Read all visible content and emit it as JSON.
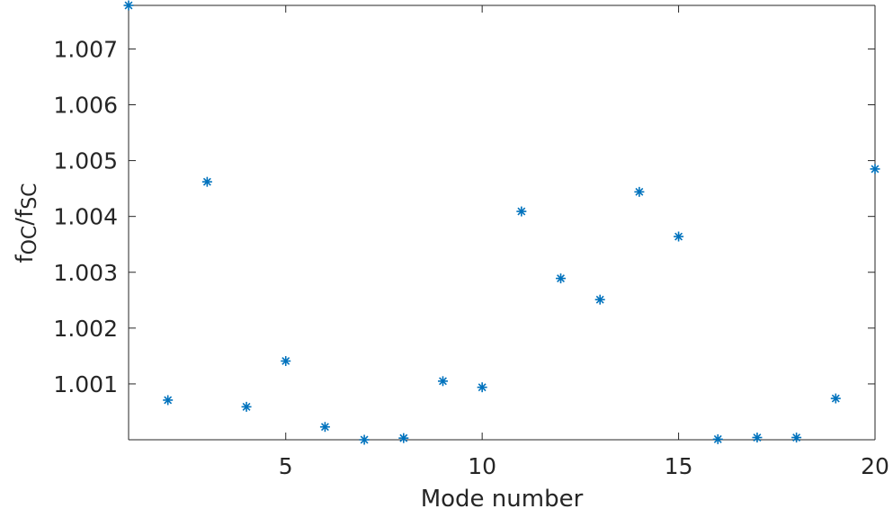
{
  "chart_data": {
    "type": "scatter",
    "title": "",
    "xlabel": "Mode number",
    "ylabel": {
      "base": "f",
      "sub1": "OC",
      "slash": "/f",
      "sub2": "SC"
    },
    "xlim": [
      1,
      20
    ],
    "ylim": [
      1.0,
      1.00778
    ],
    "xticks": [
      {
        "value": 5,
        "label": "5"
      },
      {
        "value": 10,
        "label": "10"
      },
      {
        "value": 15,
        "label": "15"
      },
      {
        "value": 20,
        "label": "20"
      }
    ],
    "yticks": [
      {
        "value": 1.001,
        "label": "1.001"
      },
      {
        "value": 1.002,
        "label": "1.002"
      },
      {
        "value": 1.003,
        "label": "1.003"
      },
      {
        "value": 1.004,
        "label": "1.004"
      },
      {
        "value": 1.005,
        "label": "1.005"
      },
      {
        "value": 1.006,
        "label": "1.006"
      },
      {
        "value": 1.007,
        "label": "1.007"
      }
    ],
    "marker": "asterisk",
    "grid": false,
    "series": [
      {
        "color": "#0072BD",
        "x": [
          1,
          2,
          3,
          4,
          5,
          6,
          7,
          8,
          9,
          10,
          11,
          12,
          13,
          14,
          15,
          16,
          17,
          18,
          19,
          20
        ],
        "y": [
          1.00778,
          1.00071,
          1.00462,
          1.00059,
          1.00141,
          1.00023,
          1.0,
          1.00003,
          1.00105,
          1.00094,
          1.00409,
          1.00289,
          1.00251,
          1.00444,
          1.00364,
          1.00001,
          1.00004,
          1.00004,
          1.00074,
          1.00485
        ]
      }
    ]
  }
}
